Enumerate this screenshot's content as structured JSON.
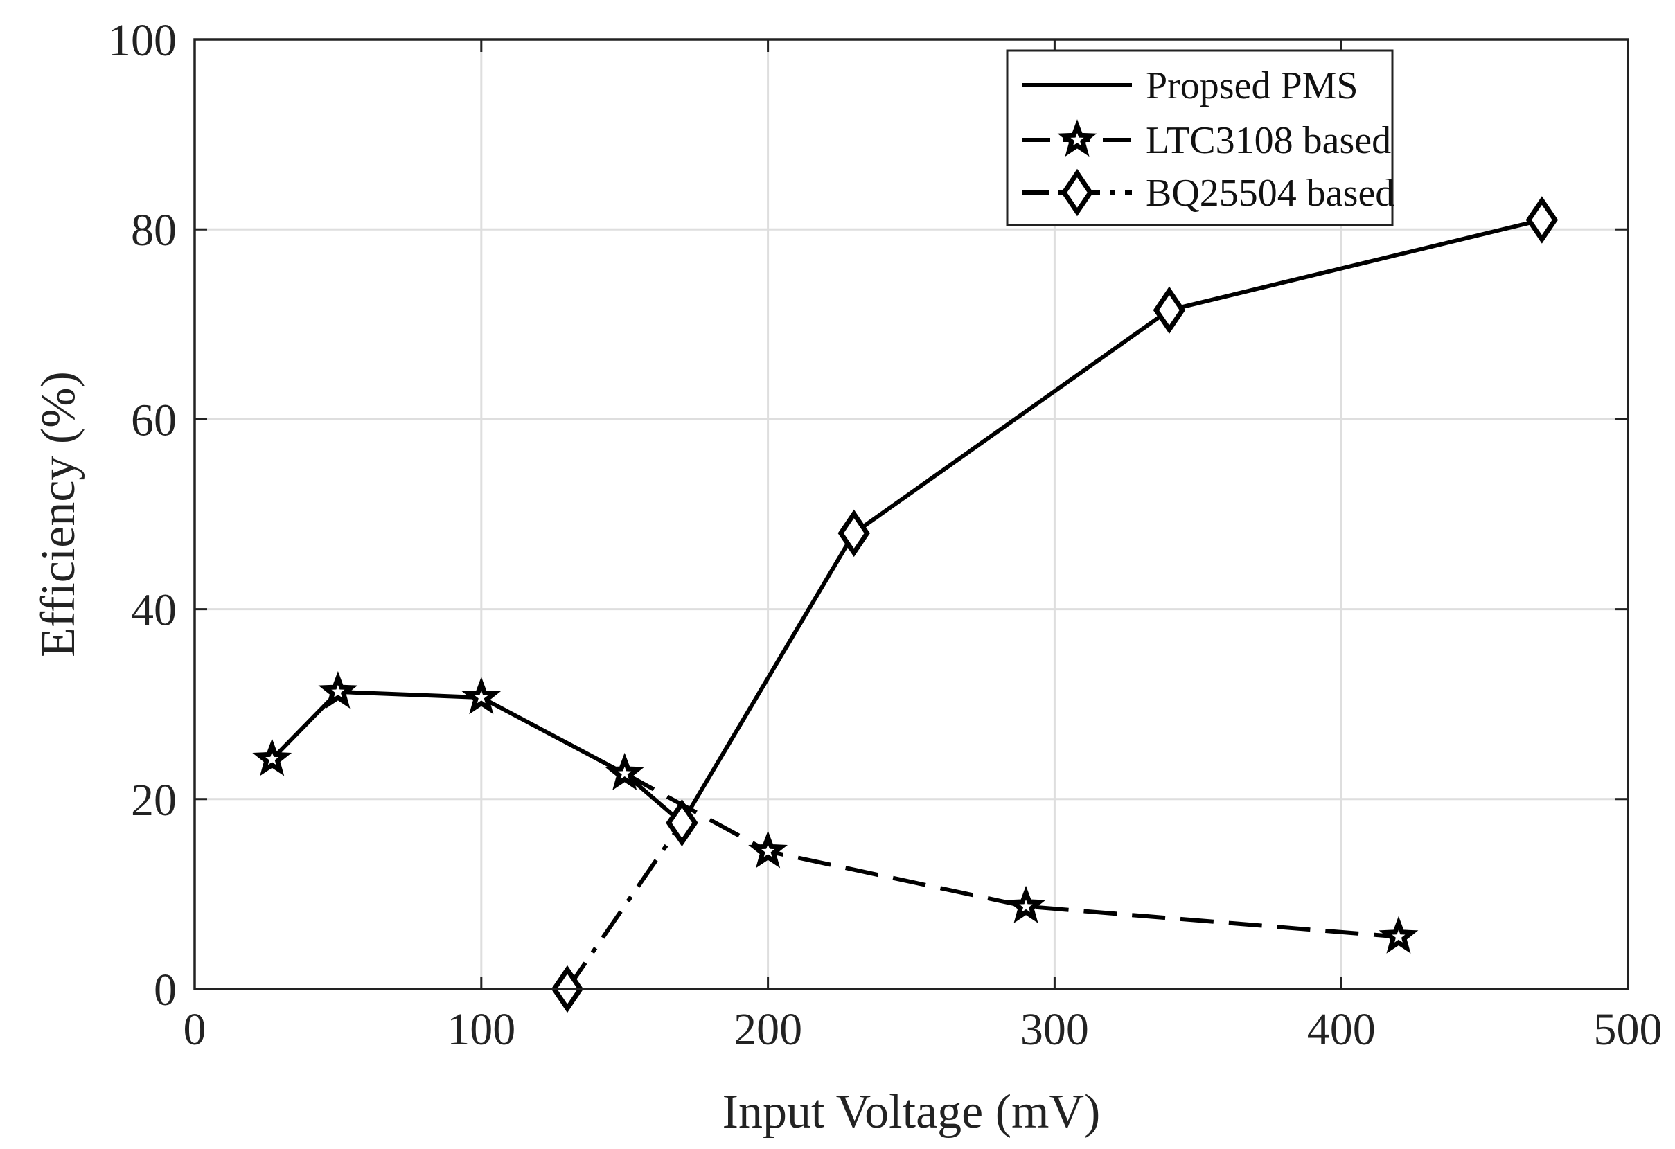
{
  "chart_data": {
    "type": "line",
    "title": "",
    "xlabel": "Input Voltage (mV)",
    "ylabel": "Efficiency (%)",
    "xlim": [
      0,
      500
    ],
    "ylim": [
      0,
      100
    ],
    "xticks": [
      0,
      100,
      200,
      300,
      400,
      500
    ],
    "yticks": [
      0,
      20,
      40,
      60,
      80,
      100
    ],
    "xtick_labels": [
      "0",
      "100",
      "200",
      "300",
      "400",
      "500"
    ],
    "ytick_labels": [
      "0",
      "20",
      "40",
      "60",
      "80",
      "100"
    ],
    "grid": true,
    "legend_position": "top-right",
    "series": [
      {
        "name": "Propsed PMS",
        "legend_marker": "none",
        "linestyle": "solid",
        "points": [
          [
            27,
            24.2
          ],
          [
            50,
            31.3
          ],
          [
            100,
            30.7
          ],
          [
            150,
            22.7
          ],
          [
            170,
            17.5
          ],
          [
            230,
            48.0
          ],
          [
            340,
            71.5
          ],
          [
            470,
            81.0
          ]
        ],
        "markers": [
          {
            "x": 27,
            "y": 24.2,
            "shape": "star"
          },
          {
            "x": 50,
            "y": 31.3,
            "shape": "star"
          },
          {
            "x": 100,
            "y": 30.7,
            "shape": "star"
          },
          {
            "x": 150,
            "y": 22.7,
            "shape": "star"
          },
          {
            "x": 170,
            "y": 17.5,
            "shape": "diamond"
          },
          {
            "x": 230,
            "y": 48.0,
            "shape": "diamond"
          },
          {
            "x": 340,
            "y": 71.5,
            "shape": "diamond"
          },
          {
            "x": 470,
            "y": 81.0,
            "shape": "diamond"
          }
        ]
      },
      {
        "name": "LTC3108 based",
        "legend_marker": "star",
        "linestyle": "dashed",
        "points": [
          [
            150,
            22.7
          ],
          [
            200,
            14.5
          ],
          [
            290,
            8.7
          ],
          [
            420,
            5.5
          ]
        ],
        "markers": [
          {
            "x": 200,
            "y": 14.5,
            "shape": "star"
          },
          {
            "x": 290,
            "y": 8.7,
            "shape": "star"
          },
          {
            "x": 420,
            "y": 5.5,
            "shape": "star"
          }
        ]
      },
      {
        "name": "BQ25504 based",
        "legend_marker": "diamond",
        "linestyle": "dashdot",
        "points": [
          [
            130,
            0
          ],
          [
            170,
            17.5
          ]
        ],
        "markers": [
          {
            "x": 130,
            "y": 0,
            "shape": "diamond"
          }
        ]
      }
    ]
  },
  "colors": {
    "line": "#000000",
    "grid": "#dedede",
    "axis": "#222222",
    "background": "#ffffff"
  }
}
